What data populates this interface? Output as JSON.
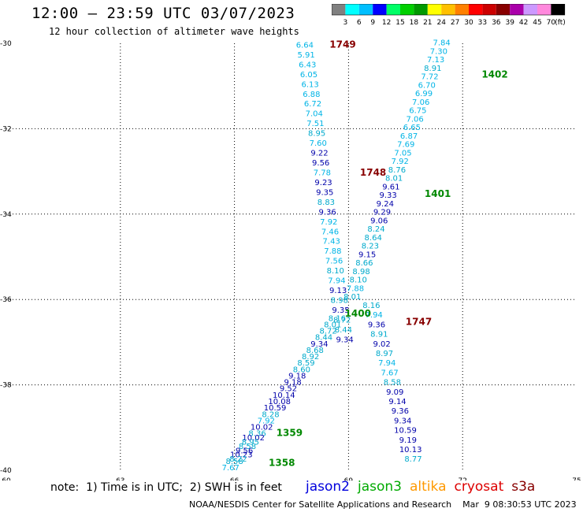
{
  "header": {
    "title": "12:00 – 23:59 UTC 03/07/2023",
    "subtitle": "12 hour collection of altimeter wave heights"
  },
  "colorbar": {
    "unit": "(ft)",
    "colors": [
      "#808080",
      "#00ffff",
      "#00bfff",
      "#0000ff",
      "#00ff66",
      "#00d000",
      "#009900",
      "#ffff00",
      "#ffc000",
      "#ff8000",
      "#ff0000",
      "#cc0000",
      "#880000",
      "#aa00aa",
      "#cc99ff",
      "#ff88dd",
      "#000000"
    ],
    "ticks": [
      "3",
      "6",
      "9",
      "12",
      "15",
      "18",
      "21",
      "24",
      "27",
      "30",
      "33",
      "36",
      "39",
      "42",
      "45",
      "70"
    ]
  },
  "map": {
    "lon_range": [
      60,
      75
    ],
    "lat_range": [
      -40,
      -30
    ],
    "x_ticks": [
      "60",
      "63",
      "66",
      "69",
      "72",
      "75"
    ],
    "y_ticks": [
      "-30",
      "-32",
      "-34",
      "-36",
      "-38",
      "-40"
    ],
    "grid": "dotted"
  },
  "tracks": {
    "t1749": {
      "time_label": "1749",
      "color": "#880000",
      "values": [
        "6.64",
        "5.91",
        "6.43",
        "6.05",
        "6.13",
        "6.88",
        "6.72",
        "7.04",
        "7.51",
        "8.95",
        "7.60",
        "9.22",
        "9.56",
        "7.78",
        "9.23",
        "9.35",
        "8.83",
        "9.36",
        "7.92",
        "7.46",
        "7.43",
        "7.88",
        "7.56",
        "8.10",
        "7.94",
        "9.13",
        "8.98",
        "9.35",
        "8.72",
        "8.44",
        "9.34"
      ]
    },
    "t1748": {
      "time_label": "1748",
      "color": "#880000",
      "values": [
        "9.22",
        "9.56",
        "7.78",
        "9.23",
        "9.35",
        "8.83",
        "9.36"
      ]
    },
    "t1747": {
      "time_label": "1747",
      "color": "#880000",
      "values": [
        "8.16",
        "7.94",
        "9.36",
        "8.91",
        "9.02",
        "8.97",
        "7.94",
        "7.67",
        "8.58",
        "9.09",
        "9.14",
        "9.36",
        "9.34",
        "10.59",
        "9.19",
        "10.13",
        "8.77"
      ]
    },
    "t1402": {
      "time_label": "1402",
      "color": "#008800",
      "values": [
        "7.84",
        "7.30",
        "7.13",
        "8.91",
        "7.72",
        "6.70",
        "6.99",
        "7.06",
        "6.75",
        "7.06",
        "6.65",
        "6.87",
        "7.69",
        "7.05",
        "7.92",
        "8.76",
        "8.01",
        "9.61",
        "9.33",
        "9.24",
        "9.29",
        "9.06",
        "8.24",
        "8.64",
        "8.23",
        "9.15",
        "8.66",
        "8.98",
        "8.10",
        "7.88",
        "8.01"
      ]
    },
    "t1401": {
      "time_label": "1401",
      "color": "#008800",
      "values": [
        "9.61",
        "9.33",
        "9.24"
      ]
    },
    "t1400": {
      "time_label": "1400",
      "color": "#008800",
      "values": [
        "8.16",
        "8.01",
        "8.72",
        "8.44",
        "9.34",
        "8.68",
        "8.92",
        "8.59",
        "8.60",
        "9.18",
        "9.18",
        "9.52",
        "10.14",
        "10.08",
        "10.59",
        "8.28",
        "7.92",
        "10.02",
        "8.36"
      ]
    },
    "t1359": {
      "time_label": "1359",
      "color": "#008800",
      "values": [
        "10.02",
        "8.95",
        "8.58",
        "9.56",
        "10.23",
        "8.22"
      ]
    },
    "t1358": {
      "time_label": "1358",
      "color": "#008800",
      "values": [
        "8.58",
        "7.67"
      ]
    }
  },
  "note": "note:  1) Time is in UTC;  2) SWH is in feet",
  "satellites": [
    {
      "name": "jason2",
      "color": "#0000dd"
    },
    {
      "name": "jason3",
      "color": "#00aa00"
    },
    {
      "name": "altika",
      "color": "#ff9900"
    },
    {
      "name": "cryosat",
      "color": "#dd0000"
    },
    {
      "name": "s3a",
      "color": "#880000"
    }
  ],
  "footer": "NOAA/NESDIS Center for Satellite Applications and Research    Mar  9 08:30:53 UTC 2023"
}
